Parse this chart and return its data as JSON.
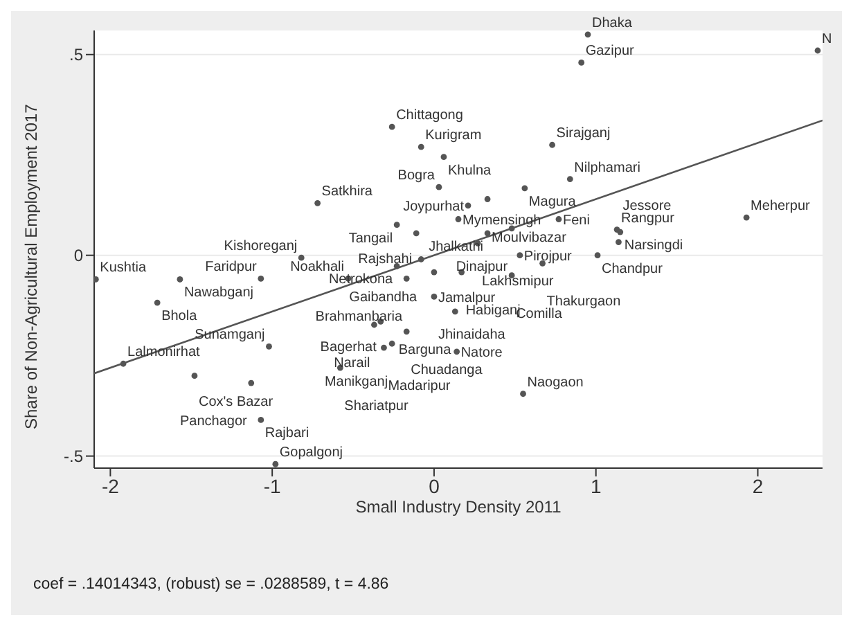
{
  "chart_data": {
    "type": "scatter",
    "xlabel": "Small Industry Density 2011",
    "ylabel": "Share of Non-Agricultural Employment 2017",
    "xlim": [
      -2.1,
      2.4
    ],
    "ylim": [
      -0.53,
      0.56
    ],
    "xticks": [
      -2,
      -1,
      0,
      1,
      2
    ],
    "yticks": [
      {
        "value": -0.5,
        "label": "-.5"
      },
      {
        "value": 0,
        "label": "0"
      },
      {
        "value": 0.5,
        "label": ".5"
      }
    ],
    "grid": "y",
    "marker": "circle",
    "series": [
      {
        "type": "scatter",
        "color": "#555555",
        "x": [
          0.95,
          0.91,
          2.37,
          -0.26,
          -0.08,
          0.06,
          0.73,
          0.84,
          0.03,
          0.56,
          -0.72,
          0.21,
          0.33,
          -0.23,
          -0.11,
          0.15,
          0.33,
          0.48,
          0.77,
          0.27,
          0.53,
          0.67,
          1.01,
          1.13,
          1.15,
          1.14,
          1.93,
          -0.08,
          -0.23,
          0.0,
          0.17,
          -0.17,
          0.48,
          -0.82,
          -2.09,
          -1.57,
          -1.07,
          -0.53,
          -1.71,
          0.0,
          0.13,
          -0.33,
          -0.37,
          -0.17,
          -0.26,
          -0.31,
          0.14,
          -1.02,
          -0.58,
          -1.92,
          -1.48,
          -1.13,
          -1.07,
          -0.98,
          0.55
        ],
        "values": [
          0.55,
          0.48,
          0.51,
          0.32,
          0.27,
          0.245,
          0.275,
          0.19,
          0.17,
          0.167,
          0.13,
          0.124,
          0.14,
          0.076,
          0.055,
          0.09,
          0.055,
          0.067,
          0.09,
          0.03,
          0.0,
          -0.02,
          0.0,
          0.064,
          0.058,
          0.033,
          0.094,
          -0.01,
          -0.027,
          -0.042,
          -0.042,
          -0.058,
          -0.05,
          -0.006,
          -0.06,
          -0.06,
          -0.058,
          -0.058,
          -0.118,
          -0.103,
          -0.14,
          -0.165,
          -0.173,
          -0.19,
          -0.22,
          -0.23,
          -0.24,
          -0.227,
          -0.28,
          -0.27,
          -0.3,
          -0.318,
          -0.41,
          -0.52,
          -0.345
        ]
      },
      {
        "type": "line",
        "marker": "none",
        "color": "#555555",
        "x": [
          -2.1,
          2.4
        ],
        "values": [
          -0.294,
          0.336
        ]
      }
    ],
    "annotations": [
      {
        "text": "Dhaka",
        "x": 0.95,
        "y": 0.55
      },
      {
        "text": "Gazipur",
        "x": 0.91,
        "y": 0.48
      },
      {
        "text": "N",
        "x": 2.37,
        "y": 0.51
      },
      {
        "text": "Chittagong",
        "x": -0.26,
        "y": 0.32
      },
      {
        "text": "Kurigram",
        "x": -0.08,
        "y": 0.27
      },
      {
        "text": "Khulna",
        "x": 0.06,
        "y": 0.245
      },
      {
        "text": "Sirajganj",
        "x": 0.73,
        "y": 0.275
      },
      {
        "text": "Nilphamari",
        "x": 0.84,
        "y": 0.19
      },
      {
        "text": "Bogra",
        "x": 0.03,
        "y": 0.17
      },
      {
        "text": "Magura",
        "x": 0.56,
        "y": 0.167
      },
      {
        "text": "Satkhira",
        "x": -0.72,
        "y": 0.13
      },
      {
        "text": "Joypurhat",
        "x": 0.21,
        "y": 0.124
      },
      {
        "text": "Moulvibazar",
        "x": 0.33,
        "y": 0.14
      },
      {
        "text": "Tangail",
        "x": -0.23,
        "y": 0.076
      },
      {
        "text": "Rajshahi",
        "x": -0.11,
        "y": 0.055
      },
      {
        "text": "Mymensingh",
        "x": 0.15,
        "y": 0.09
      },
      {
        "text": "Jhalkathi",
        "x": 0.33,
        "y": 0.055
      },
      {
        "text": "Dinajpur",
        "x": 0.48,
        "y": 0.067
      },
      {
        "text": "Feni",
        "x": 0.77,
        "y": 0.09
      },
      {
        "text": "Lakhsmipur",
        "x": 0.27,
        "y": 0.03
      },
      {
        "text": "Pirojpur",
        "x": 0.53,
        "y": 0.0
      },
      {
        "text": "Thakurgaon",
        "x": 0.67,
        "y": -0.02
      },
      {
        "text": "Chandpur",
        "x": 1.01,
        "y": 0.0
      },
      {
        "text": "Rangpur",
        "x": 1.13,
        "y": 0.064
      },
      {
        "text": "Narsingdi",
        "x": 1.15,
        "y": 0.058
      },
      {
        "text": "Jessore",
        "x": 1.14,
        "y": 0.033
      },
      {
        "text": "Meherpur",
        "x": 1.93,
        "y": 0.094
      },
      {
        "text": "Gaibandha",
        "x": -0.08,
        "y": -0.01
      },
      {
        "text": "Netrokona",
        "x": -0.23,
        "y": -0.027
      },
      {
        "text": "Jamalpur",
        "x": 0.0,
        "y": -0.042
      },
      {
        "text": "Habiganj",
        "x": 0.17,
        "y": -0.042
      },
      {
        "text": "Brahmanbaria",
        "x": -0.17,
        "y": -0.058
      },
      {
        "text": "Comilla",
        "x": 0.48,
        "y": -0.05
      },
      {
        "text": "Kishoreganj",
        "x": -0.82,
        "y": -0.006
      },
      {
        "text": "Kushtia",
        "x": -2.09,
        "y": -0.06
      },
      {
        "text": "Nawabganj",
        "x": -1.57,
        "y": -0.06
      },
      {
        "text": "Faridpur",
        "x": -1.07,
        "y": -0.058
      },
      {
        "text": "Noakhali",
        "x": -0.53,
        "y": -0.058
      },
      {
        "text": "Bhola",
        "x": -1.71,
        "y": -0.118
      },
      {
        "text": "Jhinaidaha",
        "x": 0.0,
        "y": -0.103
      },
      {
        "text": "Barguna",
        "x": 0.13,
        "y": -0.14
      },
      {
        "text": "Bagerhat",
        "x": -0.33,
        "y": -0.165
      },
      {
        "text": "Narail",
        "x": -0.37,
        "y": -0.173
      },
      {
        "text": "Chuadanga",
        "x": -0.17,
        "y": -0.19
      },
      {
        "text": "Manikganj",
        "x": -0.26,
        "y": -0.22
      },
      {
        "text": "Madaripur",
        "x": -0.31,
        "y": -0.23
      },
      {
        "text": "Natore",
        "x": 0.14,
        "y": -0.24
      },
      {
        "text": "Sunamganj",
        "x": -1.02,
        "y": -0.227
      },
      {
        "text": "Shariatpur",
        "x": -0.58,
        "y": -0.28
      },
      {
        "text": "Lalmonirhat",
        "x": -1.92,
        "y": -0.27
      },
      {
        "text": "Cox's Bazar",
        "x": -1.48,
        "y": -0.3
      },
      {
        "text": "Panchagor",
        "x": -1.13,
        "y": -0.318
      },
      {
        "text": "Rajbari",
        "x": -1.07,
        "y": -0.41
      },
      {
        "text": "Gopalgonj",
        "x": -0.98,
        "y": -0.52
      },
      {
        "text": "Naogaon",
        "x": 0.55,
        "y": -0.345
      },
      "coef = .14014343, (robust) se = .0288589, t = 4.86"
    ]
  }
}
